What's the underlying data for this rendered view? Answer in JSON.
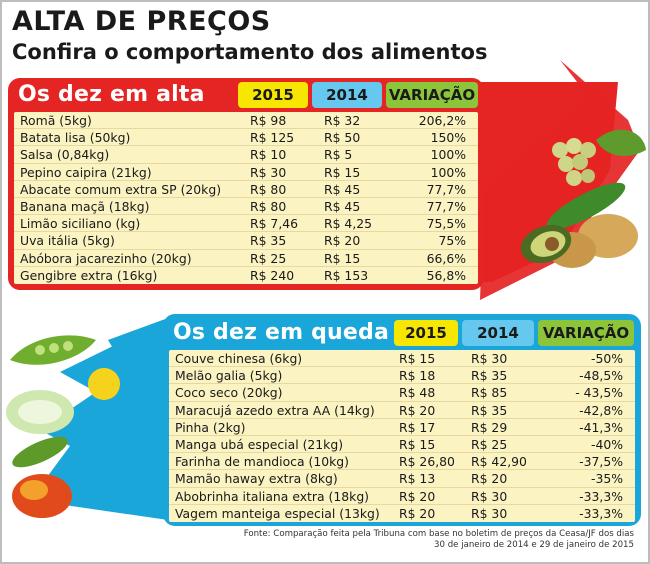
{
  "headline": "ALTA DE PREÇOS",
  "subheadline": "Confira o comportamento dos alimentos",
  "colors": {
    "up_panel": "#e52424",
    "down_panel": "#1aa6d9",
    "header_2015": "#f6e600",
    "header_2014": "#66c8ee",
    "header_variation": "#8cc43a",
    "table_body": "#fbf3c2"
  },
  "chart_data": [
    {
      "type": "table",
      "title": "Os dez em alta",
      "columns": [
        "2015",
        "2014",
        "VARIAÇÃO"
      ],
      "rows": [
        {
          "item": "Romã (5kg)",
          "price_2015": "R$ 98",
          "price_2014": "R$ 32",
          "variation": "206,2%"
        },
        {
          "item": "Batata lisa (50kg)",
          "price_2015": "R$ 125",
          "price_2014": "R$ 50",
          "variation": "150%"
        },
        {
          "item": "Salsa (0,84kg)",
          "price_2015": "R$ 10",
          "price_2014": "R$ 5",
          "variation": "100%"
        },
        {
          "item": "Pepino caipira (21kg)",
          "price_2015": "R$ 30",
          "price_2014": "R$ 15",
          "variation": "100%"
        },
        {
          "item": "Abacate comum extra SP (20kg)",
          "price_2015": "R$ 80",
          "price_2014": "R$ 45",
          "variation": "77,7%"
        },
        {
          "item": "Banana maçã (18kg)",
          "price_2015": "R$ 80",
          "price_2014": "R$ 45",
          "variation": "77,7%"
        },
        {
          "item": "Limão siciliano (kg)",
          "price_2015": "R$ 7,46",
          "price_2014": "R$ 4,25",
          "variation": "75,5%"
        },
        {
          "item": "Uva itália (5kg)",
          "price_2015": "R$ 35",
          "price_2014": "R$ 20",
          "variation": "75%"
        },
        {
          "item": "Abóbora jacarezinho (20kg)",
          "price_2015": "R$ 25",
          "price_2014": "R$ 15",
          "variation": "66,6%"
        },
        {
          "item": "Gengibre extra (16kg)",
          "price_2015": "R$ 240",
          "price_2014": "R$ 153",
          "variation": "56,8%"
        }
      ]
    },
    {
      "type": "table",
      "title": "Os dez em queda",
      "columns": [
        "2015",
        "2014",
        "VARIAÇÃO"
      ],
      "rows": [
        {
          "item": "Couve chinesa (6kg)",
          "price_2015": "R$ 15",
          "price_2014": "R$ 30",
          "variation": "-50%"
        },
        {
          "item": "Melão galia (5kg)",
          "price_2015": "R$ 18",
          "price_2014": "R$ 35",
          "variation": "-48,5%"
        },
        {
          "item": "Coco seco (20kg)",
          "price_2015": "R$ 48",
          "price_2014": "R$ 85",
          "variation": "- 43,5%"
        },
        {
          "item": "Maracujá azedo extra AA (14kg)",
          "price_2015": "R$ 20",
          "price_2014": "R$ 35",
          "variation": "-42,8%"
        },
        {
          "item": "Pinha (2kg)",
          "price_2015": "R$ 17",
          "price_2014": "R$ 29",
          "variation": "-41,3%"
        },
        {
          "item": "Manga ubá especial (21kg)",
          "price_2015": "R$ 15",
          "price_2014": "R$ 25",
          "variation": "-40%"
        },
        {
          "item": "Farinha de mandioca (10kg)",
          "price_2015": "R$ 26,80",
          "price_2014": "R$ 42,90",
          "variation": "-37,5%"
        },
        {
          "item": "Mamão haway extra (8kg)",
          "price_2015": "R$ 13",
          "price_2014": "R$ 20",
          "variation": "-35%"
        },
        {
          "item": "Abobrinha italiana extra (18kg)",
          "price_2015": "R$ 20",
          "price_2014": "R$ 30",
          "variation": "-33,3%"
        },
        {
          "item": "Vagem manteiga especial (13kg)",
          "price_2015": "R$ 20",
          "price_2014": "R$ 30",
          "variation": "-33,3%"
        }
      ]
    }
  ],
  "source": {
    "line1": "Fonte: Comparação feita pela Tribuna com base no boletim de preços da Ceasa/JF dos dias",
    "line2": "30 de janeiro de 2014 e 29 de janeiro de 2015"
  }
}
